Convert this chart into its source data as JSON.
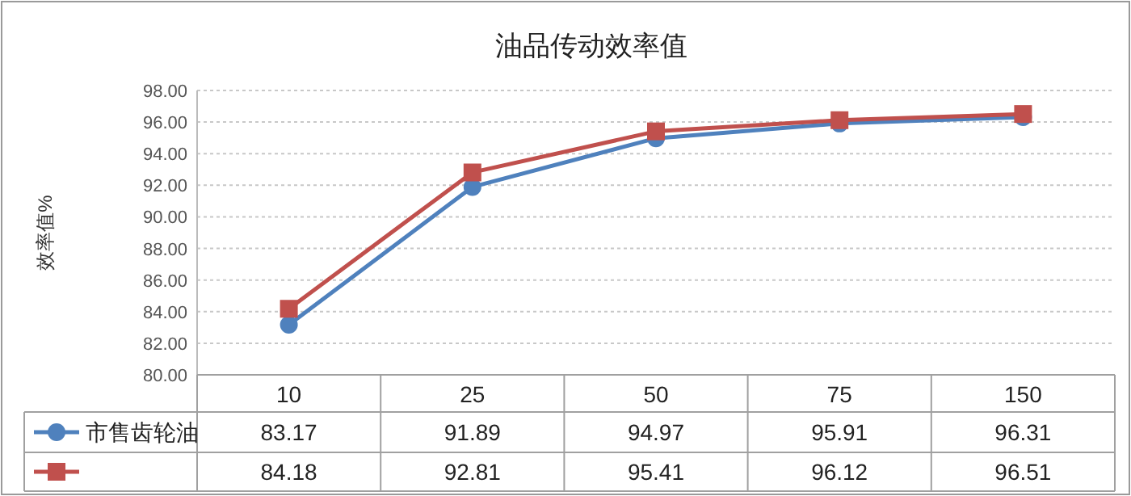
{
  "chart_data": {
    "type": "line",
    "title": "油品传动效率值",
    "ylabel": "效率值%",
    "categories": [
      "10",
      "25",
      "50",
      "75",
      "150"
    ],
    "series": [
      {
        "name": "市售齿轮油",
        "color": "#4f81bd",
        "marker": "circle",
        "values": [
          83.17,
          91.89,
          94.97,
          95.91,
          96.31
        ]
      },
      {
        "color": "#c0504d",
        "marker": "square",
        "values": [
          84.18,
          92.81,
          95.41,
          96.12,
          96.51
        ]
      }
    ],
    "ylim": [
      80,
      98
    ],
    "yticks": [
      {
        "value": 80,
        "label": "80.00"
      },
      {
        "value": 82,
        "label": "82.00"
      },
      {
        "value": 84,
        "label": "84.00"
      },
      {
        "value": 86,
        "label": "86.00"
      },
      {
        "value": 88,
        "label": "88.00"
      },
      {
        "value": 90,
        "label": "90.00"
      },
      {
        "value": 92,
        "label": "92.00"
      },
      {
        "value": 94,
        "label": "94.00"
      },
      {
        "value": 96,
        "label": "96.00"
      },
      {
        "value": 98,
        "label": "98.00"
      }
    ],
    "grid": "y",
    "data_labels": true,
    "line_style": "solid"
  }
}
